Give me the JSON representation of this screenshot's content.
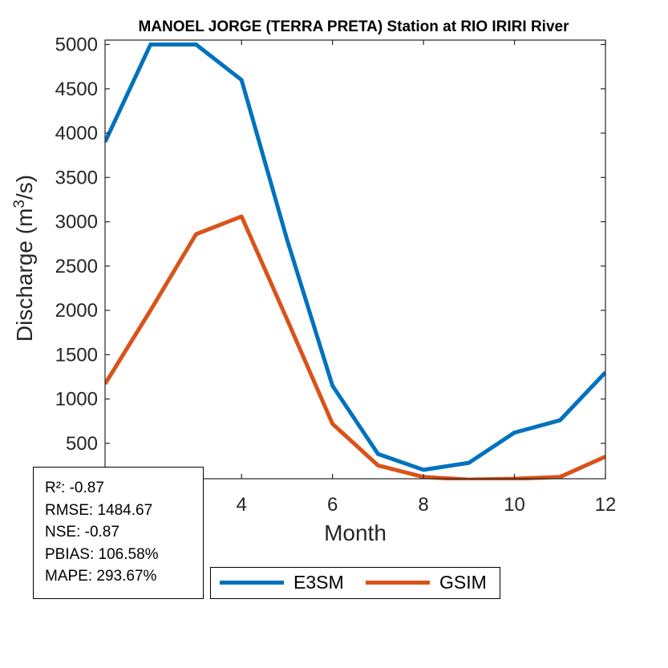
{
  "chart_data": {
    "type": "line",
    "title": "MANOEL JORGE  (TERRA PRETA)  Station at  RIO IRIRI  River",
    "xlabel": "Month",
    "ylabel_main": "Discharge (m",
    "ylabel_sup": "3",
    "ylabel_tail": "/s)",
    "xlim": [
      1,
      12
    ],
    "ylim": [
      100,
      5050
    ],
    "x": [
      1,
      2,
      3,
      4,
      5,
      6,
      7,
      8,
      9,
      10,
      11,
      12
    ],
    "xticks": [
      4,
      6,
      8,
      10,
      12
    ],
    "yticks": [
      500,
      1000,
      1500,
      2000,
      2500,
      3000,
      3500,
      4000,
      4500,
      5000
    ],
    "series": [
      {
        "name": "E3SM",
        "color": "#0072BD",
        "values": [
          3900,
          5000,
          5000,
          4600,
          2800,
          1150,
          380,
          200,
          280,
          620,
          760,
          1300
        ]
      },
      {
        "name": "GSIM",
        "color": "#D95319",
        "values": [
          1170,
          2000,
          2860,
          3060,
          1900,
          720,
          250,
          120,
          90,
          100,
          120,
          350
        ]
      }
    ],
    "grid": false,
    "legend_position": "bottom"
  },
  "stats": {
    "r2": "R²: -0.87",
    "rmse": "RMSE: 1484.67",
    "nse": "NSE: -0.87",
    "pbias": "PBIAS: 106.58%",
    "mape": "MAPE: 293.67%"
  }
}
